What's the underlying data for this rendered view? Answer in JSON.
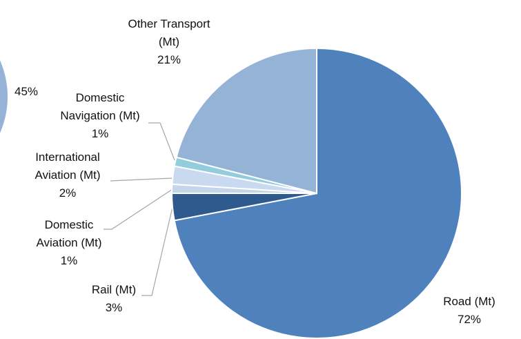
{
  "chart_data": {
    "type": "pie",
    "categories": [
      "Road (Mt)",
      "Rail (Mt)",
      "Domestic Aviation (Mt)",
      "International Aviation (Mt)",
      "Domestic Navigation (Mt)",
      "Other Transport (Mt)"
    ],
    "values": [
      72,
      3,
      1,
      2,
      1,
      21
    ],
    "value_labels": [
      "72%",
      "3%",
      "1%",
      "2%",
      "1%",
      "21%"
    ],
    "colors": [
      "#4f81bd",
      "#2f5a8e",
      "#c5d5ea",
      "#c9daf0",
      "#93cddd",
      "#95b3d7"
    ],
    "start_angle": 0,
    "direction": "clockwise",
    "annotations": [
      "45%"
    ]
  }
}
